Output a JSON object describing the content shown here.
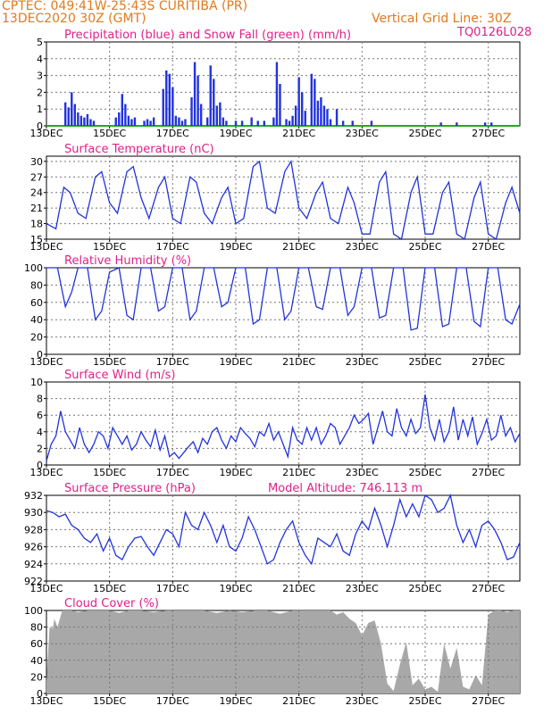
{
  "header": {
    "line1": "CPTEC:   049:41W-25:43S   CURITIBA (PR)",
    "line2": "13DEC2020 30Z (GMT)",
    "vertical_grid": "Vertical Grid Line: 30Z",
    "code": "TQ0126L028"
  },
  "colors": {
    "header": "#e07a1e",
    "title": "#e0208a",
    "series": "#2233dd",
    "snow": "#22aa22",
    "cloud": "#a8a8a8"
  },
  "x_axis": {
    "start_day": 13,
    "end_day": 28,
    "tick_labels": [
      "13DEC",
      "15DEC",
      "17DEC",
      "19DEC",
      "21DEC",
      "23DEC",
      "25DEC",
      "27DEC"
    ],
    "tick_days": [
      13,
      15,
      17,
      19,
      21,
      23,
      25,
      27
    ]
  },
  "chart_data": [
    {
      "id": "precip",
      "type": "bar",
      "title": "Precipitation (blue) and Snow Fall (green) (mm/h)",
      "ylim": [
        0,
        5
      ],
      "yticks": [
        0,
        1,
        2,
        3,
        4,
        5
      ],
      "grid": true,
      "x": [
        13.6,
        13.7,
        13.8,
        13.9,
        14.0,
        14.1,
        14.2,
        14.3,
        14.4,
        14.5,
        15.2,
        15.3,
        15.4,
        15.5,
        15.6,
        15.7,
        15.8,
        16.1,
        16.2,
        16.3,
        16.4,
        16.7,
        16.8,
        16.9,
        17.0,
        17.1,
        17.2,
        17.3,
        17.4,
        17.6,
        17.7,
        17.8,
        17.9,
        18.1,
        18.2,
        18.3,
        18.4,
        18.5,
        18.6,
        18.7,
        19.0,
        19.2,
        19.5,
        19.7,
        19.9,
        20.2,
        20.3,
        20.4,
        20.6,
        20.7,
        20.8,
        20.9,
        21.0,
        21.1,
        21.2,
        21.4,
        21.5,
        21.6,
        21.7,
        21.8,
        21.9,
        22.0,
        22.2,
        22.4,
        22.7,
        23.3,
        25.5,
        26.0,
        26.9,
        27.1
      ],
      "values": [
        1.4,
        1.1,
        2.0,
        1.3,
        0.8,
        0.6,
        0.5,
        0.7,
        0.4,
        0.3,
        0.5,
        0.8,
        1.9,
        1.3,
        0.6,
        0.4,
        0.5,
        0.3,
        0.4,
        0.3,
        0.5,
        2.2,
        3.3,
        3.1,
        2.3,
        0.6,
        0.5,
        0.3,
        0.4,
        1.7,
        3.8,
        3.0,
        1.3,
        0.5,
        3.6,
        2.8,
        1.2,
        1.4,
        0.5,
        0.3,
        0.3,
        0.3,
        0.5,
        0.3,
        0.3,
        0.5,
        3.8,
        2.5,
        0.4,
        0.3,
        0.6,
        1.2,
        2.9,
        2.0,
        0.9,
        3.1,
        2.8,
        1.5,
        1.7,
        1.2,
        1.0,
        0.4,
        1.0,
        0.3,
        0.3,
        0.3,
        0.2,
        0.2,
        0.2,
        0.2
      ],
      "snow_series": {
        "name": "Snow Fall",
        "values": [
          0
        ]
      }
    },
    {
      "id": "temp",
      "type": "line",
      "title": "Surface Temperature (nC)",
      "ylim": [
        15,
        31
      ],
      "yticks": [
        15,
        18,
        21,
        24,
        27,
        30
      ],
      "grid": true,
      "x": [
        13,
        13.3,
        13.55,
        13.75,
        14.0,
        14.25,
        14.55,
        14.75,
        15.0,
        15.25,
        15.55,
        15.75,
        16.0,
        16.25,
        16.55,
        16.75,
        17.0,
        17.25,
        17.55,
        17.75,
        18.0,
        18.25,
        18.55,
        18.75,
        19.0,
        19.25,
        19.55,
        19.75,
        20.0,
        20.25,
        20.55,
        20.75,
        21.0,
        21.25,
        21.55,
        21.75,
        22.0,
        22.25,
        22.55,
        22.75,
        23.0,
        23.25,
        23.55,
        23.75,
        24.0,
        24.25,
        24.55,
        24.75,
        25.0,
        25.25,
        25.55,
        25.75,
        26.0,
        26.25,
        26.55,
        26.75,
        27.0,
        27.25,
        27.55,
        27.75,
        28.0
      ],
      "values": [
        18,
        17,
        25,
        24,
        20,
        19,
        27,
        28,
        22,
        20,
        28,
        29,
        23,
        19,
        25,
        27,
        19,
        18,
        27,
        26,
        20,
        18,
        23,
        25,
        18,
        19,
        29,
        30,
        21,
        20,
        28,
        30,
        21,
        19,
        24,
        26,
        19,
        18,
        25,
        22,
        16,
        16,
        26,
        28,
        16,
        15,
        24,
        27,
        16,
        16,
        24,
        26,
        16,
        15,
        23,
        26,
        16,
        15,
        22,
        25,
        20
      ]
    },
    {
      "id": "rh",
      "type": "line",
      "title": "Relative Humidity (%)",
      "ylim": [
        0,
        100
      ],
      "yticks": [
        0,
        20,
        40,
        60,
        80,
        100
      ],
      "grid": true,
      "x": [
        13,
        13.35,
        13.6,
        13.8,
        14.0,
        14.3,
        14.55,
        14.75,
        15.0,
        15.3,
        15.55,
        15.75,
        16.0,
        16.3,
        16.55,
        16.75,
        17.0,
        17.3,
        17.55,
        17.75,
        18.0,
        18.3,
        18.55,
        18.75,
        19.0,
        19.3,
        19.55,
        19.75,
        20.0,
        20.3,
        20.55,
        20.75,
        21.0,
        21.3,
        21.55,
        21.75,
        22.0,
        22.3,
        22.55,
        22.75,
        23.0,
        23.3,
        23.55,
        23.75,
        24.0,
        24.3,
        24.55,
        24.75,
        25.0,
        25.3,
        25.55,
        25.75,
        26.0,
        26.3,
        26.55,
        26.75,
        27.0,
        27.3,
        27.55,
        27.75,
        28.0
      ],
      "values": [
        100,
        100,
        55,
        72,
        100,
        100,
        40,
        50,
        95,
        100,
        45,
        40,
        100,
        100,
        50,
        55,
        100,
        100,
        40,
        50,
        100,
        100,
        55,
        60,
        100,
        100,
        35,
        40,
        100,
        100,
        40,
        50,
        100,
        100,
        55,
        52,
        100,
        100,
        45,
        55,
        100,
        100,
        42,
        45,
        100,
        100,
        28,
        30,
        100,
        100,
        32,
        35,
        100,
        100,
        38,
        32,
        100,
        100,
        40,
        35,
        58
      ]
    },
    {
      "id": "wind",
      "type": "line",
      "title": "Surface Wind (m/s)",
      "ylim": [
        0,
        10
      ],
      "yticks": [
        0,
        2,
        4,
        6,
        8,
        10
      ],
      "grid": true,
      "x": [
        13,
        13.15,
        13.3,
        13.45,
        13.6,
        13.75,
        13.9,
        14.05,
        14.2,
        14.35,
        14.5,
        14.65,
        14.8,
        14.95,
        15.1,
        15.25,
        15.4,
        15.55,
        15.7,
        15.85,
        16.0,
        16.15,
        16.3,
        16.45,
        16.6,
        16.75,
        16.9,
        17.05,
        17.2,
        17.35,
        17.5,
        17.65,
        17.8,
        17.95,
        18.1,
        18.25,
        18.4,
        18.55,
        18.7,
        18.85,
        19.0,
        19.15,
        19.3,
        19.45,
        19.6,
        19.75,
        19.9,
        20.05,
        20.2,
        20.35,
        20.5,
        20.65,
        20.8,
        20.95,
        21.1,
        21.25,
        21.4,
        21.55,
        21.7,
        21.85,
        22.0,
        22.15,
        22.3,
        22.45,
        22.6,
        22.75,
        22.9,
        23.05,
        23.2,
        23.35,
        23.5,
        23.65,
        23.8,
        23.95,
        24.1,
        24.25,
        24.4,
        24.55,
        24.7,
        24.85,
        25.0,
        25.15,
        25.3,
        25.45,
        25.6,
        25.75,
        25.9,
        26.05,
        26.2,
        26.35,
        26.5,
        26.65,
        26.8,
        26.95,
        27.1,
        27.25,
        27.4,
        27.55,
        27.7,
        27.85,
        28.0
      ],
      "values": [
        0.5,
        2.5,
        3.5,
        6.5,
        4.0,
        3.0,
        2.0,
        4.5,
        2.5,
        1.5,
        2.5,
        4.0,
        3.5,
        2.0,
        4.5,
        3.5,
        2.5,
        3.5,
        1.8,
        2.5,
        4.0,
        3.0,
        2.2,
        4.2,
        1.8,
        3.5,
        1.0,
        1.5,
        0.8,
        1.5,
        2.2,
        2.8,
        1.5,
        3.2,
        2.5,
        4.0,
        4.5,
        3.0,
        2.0,
        3.5,
        2.8,
        4.5,
        3.8,
        3.2,
        2.2,
        4.0,
        3.5,
        5.0,
        3.0,
        4.0,
        2.5,
        1.0,
        4.5,
        3.0,
        2.5,
        4.5,
        3.0,
        4.5,
        2.5,
        3.5,
        5.0,
        4.5,
        2.5,
        3.5,
        4.5,
        6.0,
        5.0,
        5.5,
        6.2,
        2.5,
        4.5,
        6.5,
        4.0,
        3.5,
        6.8,
        4.5,
        3.5,
        5.5,
        3.8,
        4.5,
        8.5,
        4.5,
        3.0,
        5.5,
        2.8,
        4.0,
        7.0,
        3.0,
        5.5,
        3.5,
        5.8,
        2.5,
        3.8,
        5.5,
        3.0,
        3.5,
        6.0,
        3.5,
        4.5,
        2.8,
        3.8
      ]
    },
    {
      "id": "pressure",
      "type": "line",
      "title": "Surface Pressure (hPa)",
      "subtitle": "Model Altitude: 746.113  m",
      "ylim": [
        922,
        932
      ],
      "yticks": [
        922,
        924,
        926,
        928,
        930,
        932
      ],
      "grid": true,
      "x": [
        13,
        13.2,
        13.4,
        13.6,
        13.8,
        14.0,
        14.2,
        14.4,
        14.6,
        14.8,
        15.0,
        15.2,
        15.4,
        15.6,
        15.8,
        16.0,
        16.2,
        16.4,
        16.6,
        16.8,
        17.0,
        17.2,
        17.4,
        17.6,
        17.8,
        18.0,
        18.2,
        18.4,
        18.6,
        18.8,
        19.0,
        19.2,
        19.4,
        19.6,
        19.8,
        20.0,
        20.2,
        20.4,
        20.6,
        20.8,
        21.0,
        21.2,
        21.4,
        21.6,
        21.8,
        22.0,
        22.2,
        22.4,
        22.6,
        22.8,
        23.0,
        23.2,
        23.4,
        23.6,
        23.8,
        24.0,
        24.2,
        24.4,
        24.6,
        24.8,
        25.0,
        25.2,
        25.4,
        25.6,
        25.8,
        26.0,
        26.2,
        26.4,
        26.6,
        26.8,
        27.0,
        27.2,
        27.4,
        27.6,
        27.8,
        28.0
      ],
      "values": [
        930.2,
        930.0,
        929.5,
        929.8,
        928.5,
        928.0,
        927.0,
        926.5,
        927.5,
        925.5,
        927.0,
        925.0,
        924.5,
        926.0,
        927.0,
        927.2,
        926.0,
        925.0,
        926.5,
        928.0,
        927.5,
        926.0,
        930.0,
        928.5,
        928.0,
        930.0,
        928.5,
        926.5,
        928.5,
        926.0,
        925.5,
        927.0,
        929.5,
        928.0,
        926.0,
        924.0,
        924.5,
        926.5,
        928.0,
        929.0,
        926.5,
        925.0,
        924.0,
        927.0,
        926.5,
        926.0,
        927.5,
        925.5,
        925.0,
        927.5,
        929.0,
        928.0,
        930.5,
        928.5,
        926.0,
        928.5,
        931.5,
        929.5,
        931.0,
        929.5,
        932.0,
        931.5,
        930.0,
        930.5,
        932.0,
        928.5,
        926.5,
        928.0,
        926.0,
        928.5,
        929.0,
        928.0,
        926.5,
        924.5,
        924.8,
        926.5
      ]
    },
    {
      "id": "cloud",
      "type": "area",
      "title": "Cloud Cover (%)",
      "ylim": [
        0,
        100
      ],
      "yticks": [
        0,
        20,
        40,
        60,
        80,
        100
      ],
      "grid": true,
      "x": [
        13,
        13.1,
        13.2,
        13.25,
        13.35,
        13.5,
        13.8,
        14.0,
        14.3,
        14.5,
        15.0,
        15.3,
        15.6,
        16.0,
        16.4,
        16.8,
        17.2,
        17.6,
        18.0,
        18.4,
        18.8,
        19.2,
        19.6,
        20.0,
        20.4,
        20.8,
        21.2,
        21.6,
        22.0,
        22.2,
        22.4,
        22.6,
        22.8,
        23.0,
        23.2,
        23.4,
        23.6,
        23.8,
        24.0,
        24.2,
        24.4,
        24.6,
        24.8,
        25.0,
        25.2,
        25.4,
        25.6,
        25.8,
        26.0,
        26.2,
        26.4,
        26.6,
        26.8,
        27.0,
        27.2,
        27.4,
        27.6,
        27.8,
        28.0
      ],
      "values": [
        15,
        80,
        78,
        90,
        80,
        100,
        100,
        98,
        100,
        100,
        100,
        97,
        100,
        100,
        98,
        100,
        100,
        100,
        100,
        97,
        100,
        98,
        100,
        100,
        96,
        100,
        100,
        100,
        100,
        95,
        98,
        90,
        85,
        70,
        85,
        88,
        60,
        12,
        3,
        35,
        62,
        10,
        18,
        5,
        8,
        2,
        60,
        30,
        55,
        8,
        5,
        22,
        10,
        95,
        100,
        100,
        98,
        100,
        100
      ]
    }
  ]
}
